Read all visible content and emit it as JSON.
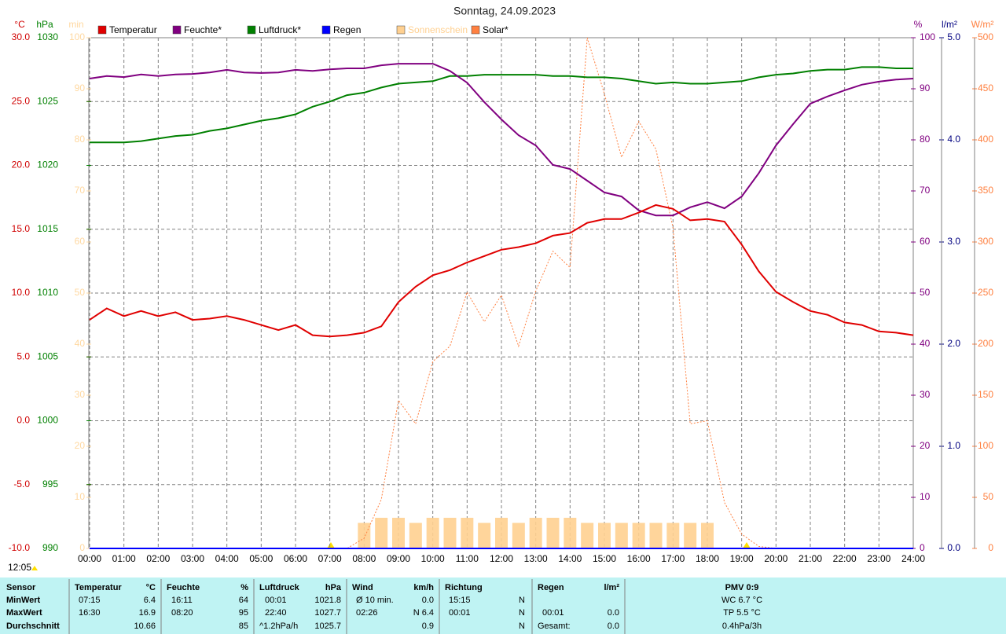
{
  "chart_data": {
    "type": "line",
    "title": "Sonntag, 24.09.2023",
    "x": [
      0,
      0.5,
      1,
      1.5,
      2,
      2.5,
      3,
      3.5,
      4,
      4.5,
      5,
      5.5,
      6,
      6.5,
      7,
      7.5,
      8,
      8.5,
      9,
      9.5,
      10,
      10.5,
      11,
      11.5,
      12,
      12.5,
      13,
      13.5,
      14,
      14.5,
      15,
      15.5,
      16,
      16.5,
      17,
      17.5,
      18,
      18.5,
      19,
      19.5,
      20,
      20.5,
      21,
      21.5,
      22,
      22.5,
      23,
      23.5,
      24
    ],
    "xlim": [
      0,
      24
    ],
    "xticks": [
      {
        "value": 0,
        "label": "00:00"
      },
      {
        "value": 1,
        "label": "01:00"
      },
      {
        "value": 2,
        "label": "02:00"
      },
      {
        "value": 3,
        "label": "03:00"
      },
      {
        "value": 4,
        "label": "04:00"
      },
      {
        "value": 5,
        "label": "05:00"
      },
      {
        "value": 6,
        "label": "06:00"
      },
      {
        "value": 7,
        "label": "07:00"
      },
      {
        "value": 8,
        "label": "08:00"
      },
      {
        "value": 9,
        "label": "09:00"
      },
      {
        "value": 10,
        "label": "10:00"
      },
      {
        "value": 11,
        "label": "11:00"
      },
      {
        "value": 12,
        "label": "12:00"
      },
      {
        "value": 13,
        "label": "13:00"
      },
      {
        "value": 14,
        "label": "14:00"
      },
      {
        "value": 15,
        "label": "15:00"
      },
      {
        "value": 16,
        "label": "16:00"
      },
      {
        "value": 17,
        "label": "17:00"
      },
      {
        "value": 18,
        "label": "18:00"
      },
      {
        "value": 19,
        "label": "19:00"
      },
      {
        "value": 20,
        "label": "20:00"
      },
      {
        "value": 21,
        "label": "21:00"
      },
      {
        "value": 22,
        "label": "22:00"
      },
      {
        "value": 23,
        "label": "23:00"
      },
      {
        "value": 24,
        "label": "24:00"
      }
    ],
    "grid": true,
    "axes": [
      {
        "label": "°C",
        "color": "#d00000",
        "lim": [
          -10,
          30
        ],
        "ticks": [
          {
            "value": -10,
            "label": "-10.0"
          },
          {
            "value": -5,
            "label": "-5.0"
          },
          {
            "value": 0,
            "label": "0.0"
          },
          {
            "value": 5,
            "label": "5.0"
          },
          {
            "value": 10,
            "label": "10.0"
          },
          {
            "value": 15,
            "label": "15.0"
          },
          {
            "value": 20,
            "label": "20.0"
          },
          {
            "value": 25,
            "label": "25.0"
          },
          {
            "value": 30,
            "label": "30.0"
          }
        ]
      },
      {
        "label": "hPa",
        "color": "#008000",
        "lim": [
          990,
          1030
        ],
        "ticks": [
          990,
          995,
          1000,
          1005,
          1010,
          1015,
          1020,
          1025,
          1030
        ]
      },
      {
        "label": "min",
        "color": "#ffd8a0",
        "lim": [
          0,
          100
        ],
        "ticks": [
          0,
          10,
          20,
          30,
          40,
          50,
          60,
          70,
          80,
          90,
          100
        ]
      },
      {
        "label": "%",
        "color": "#800080",
        "lim": [
          0,
          100
        ],
        "ticks": [
          0,
          10,
          20,
          30,
          40,
          50,
          60,
          70,
          80,
          90,
          100
        ]
      },
      {
        "label": "l/m²",
        "color": "#000080",
        "lim": [
          0,
          5
        ],
        "ticks": [
          {
            "value": 0,
            "label": "0.0"
          },
          {
            "value": 1,
            "label": "1.0"
          },
          {
            "value": 2,
            "label": "2.0"
          },
          {
            "value": 3,
            "label": "3.0"
          },
          {
            "value": 4,
            "label": "4.0"
          },
          {
            "value": 5,
            "label": "5.0"
          }
        ]
      },
      {
        "label": "W/m²",
        "color": "#ff8040",
        "lim": [
          0,
          500
        ],
        "ticks": [
          0,
          50,
          100,
          150,
          200,
          250,
          300,
          350,
          400,
          450,
          500
        ]
      }
    ],
    "series": [
      {
        "name": "Temperatur",
        "color": "#e00000",
        "axis": 0,
        "values": [
          7.9,
          8.8,
          8.2,
          8.6,
          8.2,
          8.5,
          7.9,
          8.0,
          8.2,
          7.9,
          7.5,
          7.1,
          7.5,
          6.7,
          6.6,
          6.7,
          6.9,
          7.4,
          9.3,
          10.5,
          11.4,
          11.8,
          12.4,
          12.9,
          13.4,
          13.6,
          13.9,
          14.5,
          14.7,
          15.5,
          15.8,
          15.8,
          16.3,
          16.9,
          16.6,
          15.7,
          15.8,
          15.6,
          13.8,
          11.7,
          10.1,
          9.3,
          8.6,
          8.3,
          7.7,
          7.5,
          7.0,
          6.9,
          6.7
        ]
      },
      {
        "name": "Feuchte*",
        "color": "#800080",
        "axis": 3,
        "values": [
          92.0,
          92.5,
          92.3,
          92.8,
          92.5,
          92.8,
          92.9,
          93.2,
          93.7,
          93.2,
          93.1,
          93.2,
          93.7,
          93.5,
          93.8,
          94.0,
          94.0,
          94.6,
          94.9,
          94.9,
          94.9,
          93.5,
          91.2,
          87.4,
          84.0,
          80.9,
          78.9,
          75.1,
          74.3,
          72.0,
          69.7,
          68.9,
          66.2,
          65.2,
          65.2,
          66.8,
          67.8,
          66.6,
          68.9,
          73.5,
          78.9,
          83.1,
          87.1,
          88.5,
          89.7,
          90.8,
          91.4,
          91.8,
          92.0
        ]
      },
      {
        "name": "Luftdruck*",
        "color": "#008000",
        "axis": 1,
        "values": [
          1021.8,
          1021.8,
          1021.8,
          1021.9,
          1022.1,
          1022.3,
          1022.4,
          1022.7,
          1022.9,
          1023.2,
          1023.5,
          1023.7,
          1024.0,
          1024.6,
          1025.0,
          1025.5,
          1025.7,
          1026.1,
          1026.4,
          1026.5,
          1026.6,
          1027.0,
          1027.0,
          1027.1,
          1027.1,
          1027.1,
          1027.1,
          1027.0,
          1027.0,
          1026.9,
          1026.9,
          1026.8,
          1026.6,
          1026.4,
          1026.5,
          1026.4,
          1026.4,
          1026.5,
          1026.6,
          1026.9,
          1027.1,
          1027.2,
          1027.4,
          1027.5,
          1027.5,
          1027.7,
          1027.7,
          1027.6,
          1027.6
        ]
      },
      {
        "name": "Regen",
        "color": "#0000ff",
        "axis": 4,
        "values": [
          0,
          0,
          0,
          0,
          0,
          0,
          0,
          0,
          0,
          0,
          0,
          0,
          0,
          0,
          0,
          0,
          0,
          0,
          0,
          0,
          0,
          0,
          0,
          0,
          0,
          0,
          0,
          0,
          0,
          0,
          0,
          0,
          0,
          0,
          0,
          0,
          0,
          0,
          0,
          0,
          0,
          0,
          0,
          0,
          0,
          0,
          0,
          0,
          0
        ]
      },
      {
        "name": "Sonnenschein",
        "color": "#ffd090",
        "axis": 2,
        "type": "bar",
        "values": [
          0,
          0,
          0,
          0,
          0,
          0,
          0,
          0,
          0,
          0,
          0,
          0,
          0,
          0,
          0,
          0,
          5,
          6,
          6,
          5,
          6,
          6,
          6,
          5,
          6,
          5,
          6,
          6,
          6,
          5,
          5,
          5,
          5,
          5,
          5,
          5,
          5,
          0,
          0,
          0,
          0,
          0,
          0,
          0,
          0,
          0,
          0,
          0,
          0
        ]
      },
      {
        "name": "Solar*",
        "color": "#ff8040",
        "axis": 5,
        "values": [
          0,
          0,
          0,
          0,
          0,
          0,
          0,
          0,
          0,
          0,
          0,
          0,
          0,
          0,
          0,
          0,
          10,
          48,
          145,
          122,
          183,
          198,
          251,
          222,
          248,
          198,
          252,
          291,
          275,
          500,
          445,
          383,
          418,
          391,
          314,
          122,
          125,
          45,
          14,
          2,
          0,
          0,
          0,
          0,
          0,
          0,
          0,
          0,
          0
        ]
      }
    ],
    "time_label": "12:05"
  },
  "footer": {
    "rows": [
      [
        "Sensor",
        "Temperatur",
        "°C",
        "Feuchte",
        "%",
        "Luftdruck",
        "hPa",
        "Wind",
        "km/h",
        "Richtung",
        "Regen",
        "l/m²",
        "PMV 0:9"
      ],
      [
        "MinWert",
        "07:15",
        "6.4",
        "16:11",
        "64",
        "00:01",
        "1021.8",
        "Ø 10 min.",
        "0.0",
        "15:15",
        "N",
        "WC 6.7 °C"
      ],
      [
        "MaxWert",
        "16:30",
        "16.9",
        "08:20",
        "95",
        "22:40",
        "1027.7",
        "02:26",
        "N 6.4",
        "00:01",
        "N",
        "00:01",
        "0.0",
        "TP 5.5 °C"
      ],
      [
        "Durchschnitt",
        "10.66",
        "85",
        "^1.2hPa/h",
        "1025.7",
        "0.9",
        "N",
        "Gesamt:",
        "0.0",
        "0.4hPa/3h"
      ]
    ]
  }
}
